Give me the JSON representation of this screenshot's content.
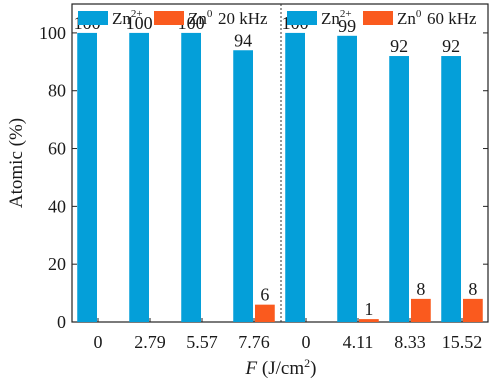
{
  "chart_data": {
    "type": "bar",
    "ylabel": "Atomic (%)",
    "xlabel_var": "F",
    "xlabel_unit": " (J/cm",
    "xlabel_sup": "2",
    "xlabel_close": ")",
    "ylim": [
      0,
      110
    ],
    "yticks": [
      0,
      20,
      40,
      60,
      80,
      100
    ],
    "grid": false,
    "legend_position": "top",
    "colors": {
      "zn2": "#049fd9",
      "zn0": "#fa5a1e"
    },
    "legend_entries": [
      {
        "base": "Zn",
        "sup": "2+",
        "color_key": "zn2"
      },
      {
        "base": "Zn",
        "sup": "0",
        "color_key": "zn0"
      }
    ],
    "groups": [
      {
        "label": "20 kHz",
        "categories": [
          "0",
          "2.79",
          "5.57",
          "7.76"
        ],
        "series": [
          {
            "key": "zn2",
            "values": [
              100,
              100,
              100,
              94
            ],
            "labels": [
              "100",
              "100",
              "100",
              "94"
            ]
          },
          {
            "key": "zn0",
            "values": [
              0,
              0,
              0,
              6
            ],
            "labels": [
              "",
              "",
              "",
              "6"
            ]
          }
        ]
      },
      {
        "label": "60 kHz",
        "categories": [
          "0",
          "4.11",
          "8.33",
          "15.52"
        ],
        "series": [
          {
            "key": "zn2",
            "values": [
              100,
              99,
              92,
              92
            ],
            "labels": [
              "100",
              "99",
              "92",
              "92"
            ]
          },
          {
            "key": "zn0",
            "values": [
              0,
              1,
              8,
              8
            ],
            "labels": [
              "",
              "1",
              "8",
              "8"
            ]
          }
        ]
      }
    ]
  }
}
